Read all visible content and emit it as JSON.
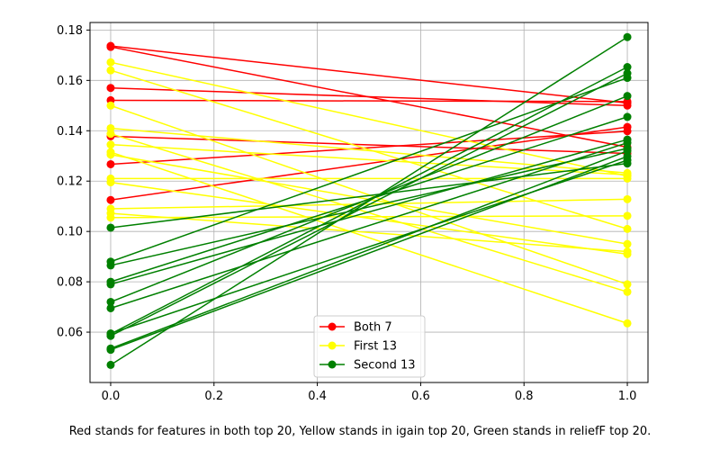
{
  "chart_data": {
    "type": "line",
    "x": [
      0,
      1
    ],
    "xlim": [
      -0.04,
      1.04
    ],
    "ylim": [
      0.04,
      0.183
    ],
    "xticks": [
      "0.0",
      "0.2",
      "0.4",
      "0.6",
      "0.8",
      "1.0"
    ],
    "yticks": [
      "0.06",
      "0.08",
      "0.10",
      "0.12",
      "0.14",
      "0.16",
      "0.18"
    ],
    "grid": true,
    "legend_position": "lower-center",
    "legend": [
      {
        "label": "Both 7",
        "color": "#ff0000"
      },
      {
        "label": "First 13",
        "color": "#ffff00"
      },
      {
        "label": "Second 13",
        "color": "#008000"
      }
    ],
    "groups": [
      {
        "name": "Both 7",
        "color": "#ff0000",
        "lines": [
          [
            0.1737,
            0.151
          ],
          [
            0.1733,
            0.1335
          ],
          [
            0.157,
            0.15
          ],
          [
            0.1521,
            0.1516
          ],
          [
            0.1378,
            0.131
          ],
          [
            0.1267,
            0.1398
          ],
          [
            0.1125,
            0.1415
          ]
        ]
      },
      {
        "name": "First 13",
        "color": "#ffff00",
        "lines": [
          [
            0.1672,
            0.122
          ],
          [
            0.164,
            0.101
          ],
          [
            0.15,
            0.079
          ],
          [
            0.141,
            0.1232
          ],
          [
            0.1388,
            0.076
          ],
          [
            0.1345,
            0.1225
          ],
          [
            0.1315,
            0.0635
          ],
          [
            0.1305,
            0.095
          ],
          [
            0.121,
            0.121
          ],
          [
            0.1195,
            0.091
          ],
          [
            0.109,
            0.1128
          ],
          [
            0.1072,
            0.092
          ],
          [
            0.1055,
            0.1062
          ]
        ]
      },
      {
        "name": "Second 13",
        "color": "#008000",
        "lines": [
          [
            0.1015,
            0.127
          ],
          [
            0.088,
            0.161
          ],
          [
            0.0865,
            0.133
          ],
          [
            0.08,
            0.1455
          ],
          [
            0.079,
            0.1365
          ],
          [
            0.072,
            0.1538
          ],
          [
            0.0695,
            0.1352
          ],
          [
            0.0593,
            0.1653
          ],
          [
            0.0585,
            0.1628
          ],
          [
            0.0535,
            0.132
          ],
          [
            0.053,
            0.1298
          ],
          [
            0.047,
            0.1772
          ],
          [
            0.0595,
            0.1283
          ]
        ]
      }
    ]
  },
  "caption": "Red stands for features in both top 20, Yellow stands in igain top 20, Green stands in reliefF top 20."
}
